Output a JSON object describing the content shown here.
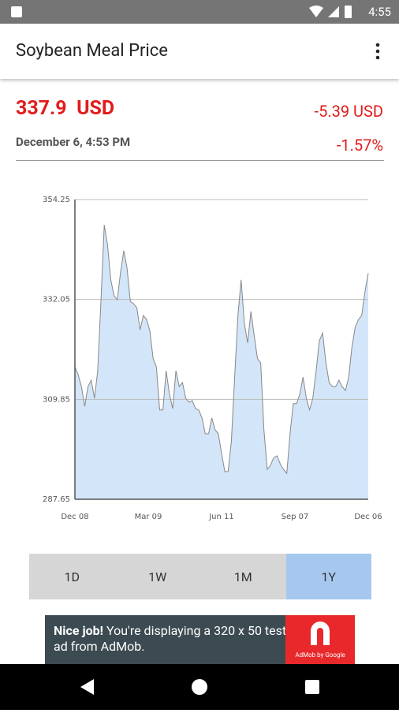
{
  "status_bar": {
    "time": "4:55"
  },
  "app_bar": {
    "title": "Soybean Meal Price"
  },
  "quote": {
    "price": "337.9",
    "currency": "USD",
    "change": "-5.39 USD",
    "date": "December 6, 4:53 PM",
    "change_percent": "-1.57%"
  },
  "chart_data": {
    "type": "area",
    "color": "#d3e5f8",
    "line_color": "#888888",
    "x_labels": [
      "Dec 08",
      "Mar 09",
      "Jun 11",
      "Sep 07",
      "Dec 06"
    ],
    "values": [
      317.1,
      315.3,
      312.7,
      308.3,
      312.7,
      314.1,
      310.1,
      316.2,
      332.0,
      348.6,
      344.3,
      336.4,
      332.9,
      332.0,
      338.1,
      342.9,
      339.0,
      331.6,
      331.1,
      330.2,
      325.3,
      328.5,
      327.6,
      325.0,
      318.9,
      317.1,
      307.5,
      307.5,
      316.2,
      311.0,
      307.8,
      316.2,
      312.7,
      313.6,
      310.1,
      309.2,
      309.6,
      307.8,
      307.5,
      305.7,
      302.2,
      302.2,
      305.7,
      303.1,
      302.2,
      297.8,
      293.8,
      293.8,
      300.5,
      314.5,
      328.5,
      336.4,
      326.7,
      322.4,
      329.4,
      324.1,
      318.9,
      318.0,
      303.1,
      294.3,
      295.2,
      296.9,
      297.3,
      295.5,
      294.3,
      293.4,
      302.2,
      308.9,
      308.9,
      311.0,
      314.8,
      310.1,
      307.5,
      310.1,
      316.2,
      322.9,
      324.6,
      318.0,
      313.6,
      312.7,
      312.7,
      314.1,
      312.7,
      311.8,
      314.8,
      321.5,
      325.9,
      327.6,
      328.5,
      333.8,
      337.9
    ],
    "ylim": [
      287.65,
      354.25
    ],
    "yticks": [
      287.65,
      309.85,
      332.05,
      354.25
    ],
    "grid": true
  },
  "ranges": [
    "1D",
    "1W",
    "1M",
    "1Y"
  ],
  "selected_range": 3,
  "ad": {
    "headline": "Nice job!",
    "body": "You're displaying a 320 x 50 test ad from AdMob.",
    "logo_text": "AdMob by Google"
  }
}
